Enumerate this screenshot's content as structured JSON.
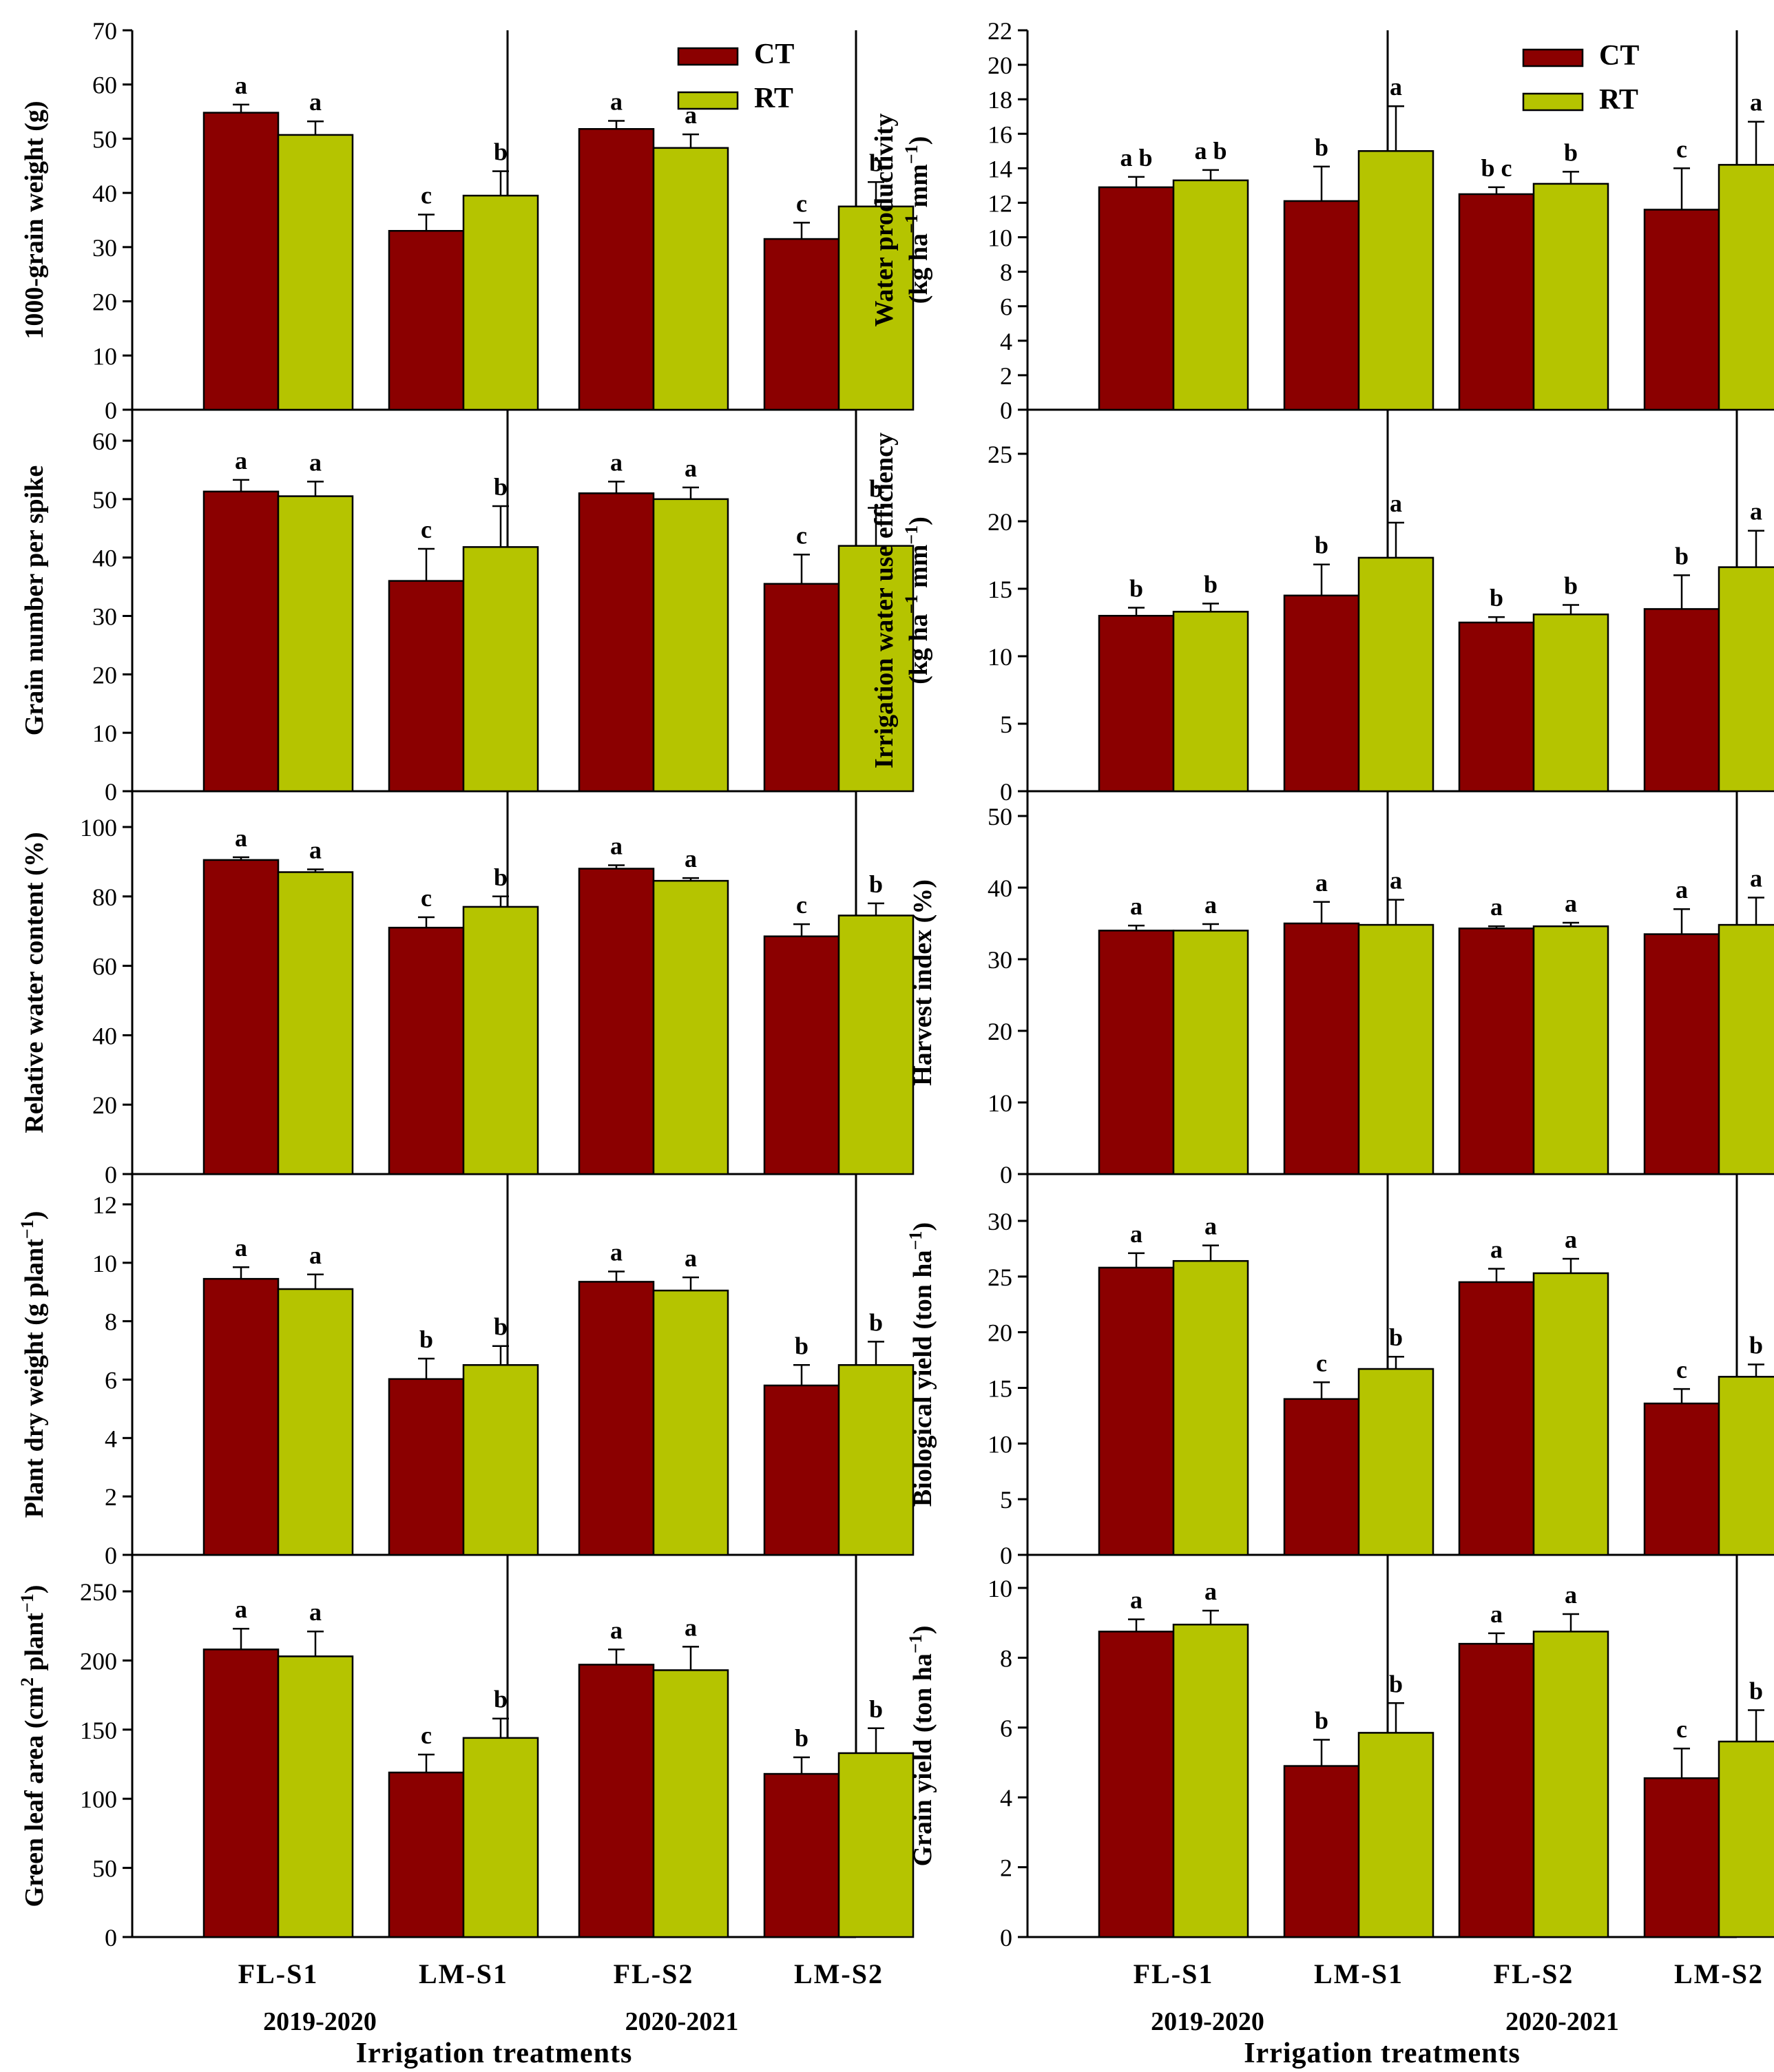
{
  "colors": {
    "CT": "#8b0000",
    "RT": "#b5c400",
    "axis": "#000000"
  },
  "legend": [
    {
      "name": "CT",
      "color": "#8b0000"
    },
    {
      "name": "RT",
      "color": "#b5c400"
    }
  ],
  "x_axis": {
    "categories": [
      "FL-S1",
      "LM-S1",
      "FL-S2",
      "LM-S2"
    ],
    "years": [
      "2019-2020",
      "2020-2021"
    ],
    "title": "Irrigation treatments"
  },
  "chart_data": [
    {
      "id": "grain-weight",
      "type": "bar",
      "column": "left",
      "row": 0,
      "ylabel": [
        "1000-grain weight (g)"
      ],
      "ylim": [
        0,
        70
      ],
      "yticks": [
        0,
        10,
        20,
        30,
        40,
        50,
        60,
        70
      ],
      "categories": [
        "FL-S1",
        "LM-S1",
        "FL-S2",
        "LM-S2"
      ],
      "series": [
        {
          "name": "CT",
          "values": [
            54.8,
            33.0,
            51.8,
            31.5
          ],
          "errors": [
            1.5,
            3.0,
            1.5,
            3.0
          ],
          "letters": [
            "a",
            "c",
            "a",
            "c"
          ]
        },
        {
          "name": "RT",
          "values": [
            50.7,
            39.5,
            48.3,
            37.5
          ],
          "errors": [
            2.5,
            4.5,
            2.5,
            4.5
          ],
          "letters": [
            "a",
            "b",
            "a",
            "b"
          ]
        }
      ]
    },
    {
      "id": "grain-number",
      "type": "bar",
      "column": "left",
      "row": 1,
      "ylabel": [
        "Grain number per spike"
      ],
      "ylim": [
        0,
        65
      ],
      "yticks": [
        0,
        10,
        20,
        30,
        40,
        50,
        60
      ],
      "categories": [
        "FL-S1",
        "LM-S1",
        "FL-S2",
        "LM-S2"
      ],
      "series": [
        {
          "name": "CT",
          "values": [
            51.3,
            36.0,
            51.0,
            35.5
          ],
          "errors": [
            2.0,
            5.5,
            2.0,
            5.0
          ],
          "letters": [
            "a",
            "c",
            "a",
            "c"
          ]
        },
        {
          "name": "RT",
          "values": [
            50.5,
            41.8,
            50.0,
            42.0
          ],
          "errors": [
            2.5,
            7.0,
            2.0,
            6.5
          ],
          "letters": [
            "a",
            "b",
            "a",
            "b"
          ]
        }
      ]
    },
    {
      "id": "relative-water-content",
      "type": "bar",
      "column": "left",
      "row": 2,
      "ylabel": [
        "Relative water content (%)"
      ],
      "ylim": [
        0,
        105
      ],
      "yticks": [
        0,
        20,
        40,
        60,
        80,
        100
      ],
      "categories": [
        "FL-S1",
        "LM-S1",
        "FL-S2",
        "LM-S2"
      ],
      "series": [
        {
          "name": "CT",
          "values": [
            90.5,
            71.0,
            88.0,
            68.5
          ],
          "errors": [
            0.8,
            3.0,
            1.0,
            3.5
          ],
          "letters": [
            "a",
            "c",
            "a",
            "c"
          ]
        },
        {
          "name": "RT",
          "values": [
            87.0,
            77.0,
            84.5,
            74.5
          ],
          "errors": [
            0.8,
            3.0,
            0.8,
            3.5
          ],
          "letters": [
            "a",
            "b",
            "a",
            "b"
          ]
        }
      ]
    },
    {
      "id": "plant-dry-weight",
      "type": "bar",
      "column": "left",
      "row": 3,
      "ylabel": [
        "Plant dry weight (g plant",
        "−1",
        ")"
      ],
      "ylim": [
        0,
        12.5
      ],
      "yticks": [
        0,
        2,
        4,
        6,
        8,
        10,
        12
      ],
      "categories": [
        "FL-S1",
        "LM-S1",
        "FL-S2",
        "LM-S2"
      ],
      "series": [
        {
          "name": "CT",
          "values": [
            9.45,
            6.02,
            9.35,
            5.8
          ],
          "errors": [
            0.4,
            0.7,
            0.35,
            0.7
          ],
          "letters": [
            "a",
            "b",
            "a",
            "b"
          ]
        },
        {
          "name": "RT",
          "values": [
            9.1,
            6.5,
            9.05,
            6.5
          ],
          "errors": [
            0.5,
            0.65,
            0.45,
            0.8
          ],
          "letters": [
            "a",
            "b",
            "a",
            "b"
          ]
        }
      ]
    },
    {
      "id": "green-leaf-area",
      "type": "bar",
      "column": "left",
      "row": 4,
      "ylabel": [
        "Green leaf area (cm",
        "2",
        " plant",
        "−1",
        ")"
      ],
      "ylim": [
        0,
        260
      ],
      "yticks": [
        0,
        50,
        100,
        150,
        200,
        250
      ],
      "categories": [
        "FL-S1",
        "LM-S1",
        "FL-S2",
        "LM-S2"
      ],
      "series": [
        {
          "name": "CT",
          "values": [
            208,
            119,
            197,
            118
          ],
          "errors": [
            15,
            13,
            11,
            12
          ],
          "letters": [
            "a",
            "c",
            "a",
            "b"
          ]
        },
        {
          "name": "RT",
          "values": [
            203,
            144,
            193,
            133
          ],
          "errors": [
            18,
            14,
            17,
            18
          ],
          "letters": [
            "a",
            "b",
            "a",
            "b"
          ]
        }
      ]
    },
    {
      "id": "water-productivity",
      "type": "bar",
      "column": "right",
      "row": 0,
      "ylabel": [
        "Water productivity",
        "(kg ha",
        "−1",
        " mm",
        "−1",
        ")"
      ],
      "ylim": [
        0,
        22
      ],
      "yticks": [
        0,
        2,
        4,
        6,
        8,
        10,
        12,
        14,
        16,
        18,
        20,
        22
      ],
      "categories": [
        "FL-S1",
        "LM-S1",
        "FL-S2",
        "LM-S2"
      ],
      "series": [
        {
          "name": "CT",
          "values": [
            12.9,
            12.1,
            12.5,
            11.6
          ],
          "errors": [
            0.6,
            2.0,
            0.4,
            2.4
          ],
          "letters": [
            "ab",
            "b",
            "bc",
            "c"
          ]
        },
        {
          "name": "RT",
          "values": [
            13.3,
            15.0,
            13.1,
            14.2
          ],
          "errors": [
            0.6,
            2.6,
            0.7,
            2.5
          ],
          "letters": [
            "ab",
            "a",
            "b",
            "a"
          ]
        }
      ]
    },
    {
      "id": "irrigation-water-use-efficiency",
      "type": "bar",
      "column": "right",
      "row": 1,
      "ylabel": [
        "Irrigation water use efficiency",
        "(kg ha",
        "−1",
        " mm",
        "−1",
        ")"
      ],
      "ylim": [
        0,
        28
      ],
      "yticks": [
        0,
        5,
        10,
        15,
        20,
        25
      ],
      "categories": [
        "FL-S1",
        "LM-S1",
        "FL-S2",
        "LM-S2"
      ],
      "series": [
        {
          "name": "CT",
          "values": [
            13.0,
            14.5,
            12.5,
            13.5
          ],
          "errors": [
            0.6,
            2.3,
            0.4,
            2.5
          ],
          "letters": [
            "b",
            "b",
            "b",
            "b"
          ]
        },
        {
          "name": "RT",
          "values": [
            13.3,
            17.3,
            13.1,
            16.6
          ],
          "errors": [
            0.6,
            2.6,
            0.7,
            2.7
          ],
          "letters": [
            "b",
            "a",
            "b",
            "a"
          ]
        }
      ]
    },
    {
      "id": "harvest-index",
      "type": "bar",
      "column": "right",
      "row": 2,
      "ylabel": [
        "Harvest index (%)"
      ],
      "ylim": [
        0,
        50
      ],
      "yticks": [
        0,
        10,
        20,
        30,
        40,
        50
      ],
      "categories": [
        "FL-S1",
        "LM-S1",
        "FL-S2",
        "LM-S2"
      ],
      "series": [
        {
          "name": "CT",
          "values": [
            34.0,
            35.0,
            34.3,
            33.5
          ],
          "errors": [
            0.7,
            3.0,
            0.3,
            3.5
          ],
          "letters": [
            "a",
            "a",
            "a",
            "a"
          ]
        },
        {
          "name": "RT",
          "values": [
            34.0,
            34.8,
            34.6,
            34.8
          ],
          "errors": [
            0.9,
            3.5,
            0.5,
            3.8
          ],
          "letters": [
            "a",
            "a",
            "a",
            "a"
          ]
        }
      ]
    },
    {
      "id": "biological-yield",
      "type": "bar",
      "column": "right",
      "row": 3,
      "ylabel": [
        "Biological yield (ton ha",
        "−1",
        ")"
      ],
      "ylim": [
        0,
        32
      ],
      "yticks": [
        0,
        5,
        10,
        15,
        20,
        25,
        30
      ],
      "categories": [
        "FL-S1",
        "LM-S1",
        "FL-S2",
        "LM-S2"
      ],
      "series": [
        {
          "name": "CT",
          "values": [
            25.8,
            14.0,
            24.5,
            13.6
          ],
          "errors": [
            1.3,
            1.5,
            1.2,
            1.3
          ],
          "letters": [
            "a",
            "c",
            "a",
            "c"
          ]
        },
        {
          "name": "RT",
          "values": [
            26.4,
            16.7,
            25.3,
            16.0
          ],
          "errors": [
            1.4,
            1.1,
            1.3,
            1.1
          ],
          "letters": [
            "a",
            "b",
            "a",
            "b"
          ]
        }
      ]
    },
    {
      "id": "grain-yield",
      "type": "bar",
      "column": "right",
      "row": 4,
      "ylabel": [
        "Grain yield (ton ha",
        "−1",
        ")"
      ],
      "ylim": [
        0,
        10.5
      ],
      "yticks": [
        0,
        2,
        4,
        6,
        8,
        10
      ],
      "categories": [
        "FL-S1",
        "LM-S1",
        "FL-S2",
        "LM-S2"
      ],
      "series": [
        {
          "name": "CT",
          "values": [
            8.75,
            4.9,
            8.4,
            4.55
          ],
          "errors": [
            0.35,
            0.75,
            0.3,
            0.85
          ],
          "letters": [
            "a",
            "b",
            "a",
            "c"
          ]
        },
        {
          "name": "RT",
          "values": [
            8.95,
            5.85,
            8.75,
            5.6
          ],
          "errors": [
            0.4,
            0.85,
            0.5,
            0.9
          ],
          "letters": [
            "a",
            "b",
            "a",
            "b"
          ]
        }
      ]
    }
  ]
}
